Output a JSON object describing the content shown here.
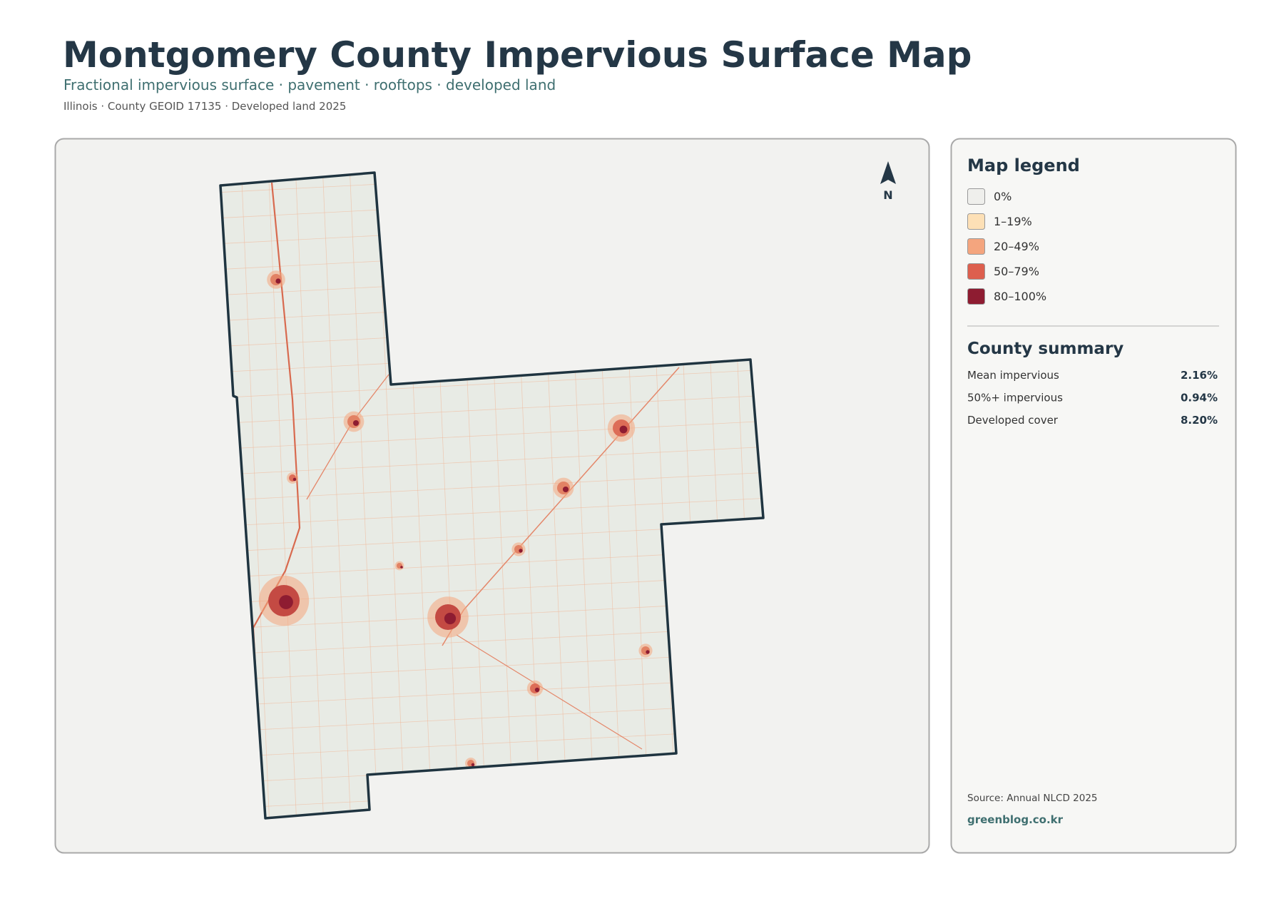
{
  "header": {
    "title": "Montgomery County Impervious Surface Map",
    "subtitle": "Fractional impervious surface · pavement · rooftops · developed land",
    "meta": "Illinois · County GEOID 17135 · Developed land 2025"
  },
  "map": {
    "north_label": "N"
  },
  "legend": {
    "title": "Map legend",
    "items": [
      {
        "label": "0%",
        "color": "#efefec"
      },
      {
        "label": "1–19%",
        "color": "#fde0b6"
      },
      {
        "label": "20–49%",
        "color": "#f4a57e"
      },
      {
        "label": "50–79%",
        "color": "#dd5f4e"
      },
      {
        "label": "80–100%",
        "color": "#8e1c31"
      }
    ]
  },
  "summary": {
    "title": "County summary",
    "rows": [
      {
        "label": "Mean impervious",
        "value": "2.16%"
      },
      {
        "label": "50%+ impervious",
        "value": "0.94%"
      },
      {
        "label": "Developed cover",
        "value": "8.20%"
      }
    ]
  },
  "footer": {
    "source": "Source: Annual NLCD 2025",
    "site": "greenblog.co.kr"
  }
}
